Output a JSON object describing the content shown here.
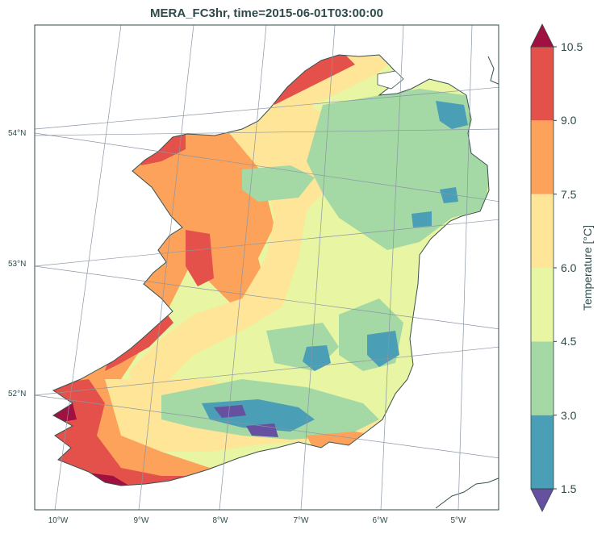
{
  "title": "MERA_FC3hr, time=2015-06-01T03:00:00",
  "chart_data": {
    "type": "heatmap",
    "title": "MERA_FC3hr, time=2015-06-01T03:00:00",
    "lat_ticks": [
      "54°N",
      "53°N",
      "52°N"
    ],
    "lon_ticks": [
      "10°W",
      "9°W",
      "8°W",
      "7°W",
      "6°W",
      "5°W"
    ],
    "colorbar": {
      "label": "Temperature [°C]",
      "ticks": [
        "1.5",
        "3.0",
        "4.5",
        "6.0",
        "7.5",
        "9.0",
        "10.5"
      ],
      "levels": [
        1.5,
        3.0,
        4.5,
        6.0,
        7.5,
        9.0,
        10.5
      ],
      "colors": [
        "#4a9eb5",
        "#a4d8a4",
        "#e8f5a2",
        "#fee597",
        "#fca25b",
        "#e4514a"
      ],
      "under_color": "#6650a0",
      "over_color": "#a01040",
      "extend": "both"
    }
  }
}
